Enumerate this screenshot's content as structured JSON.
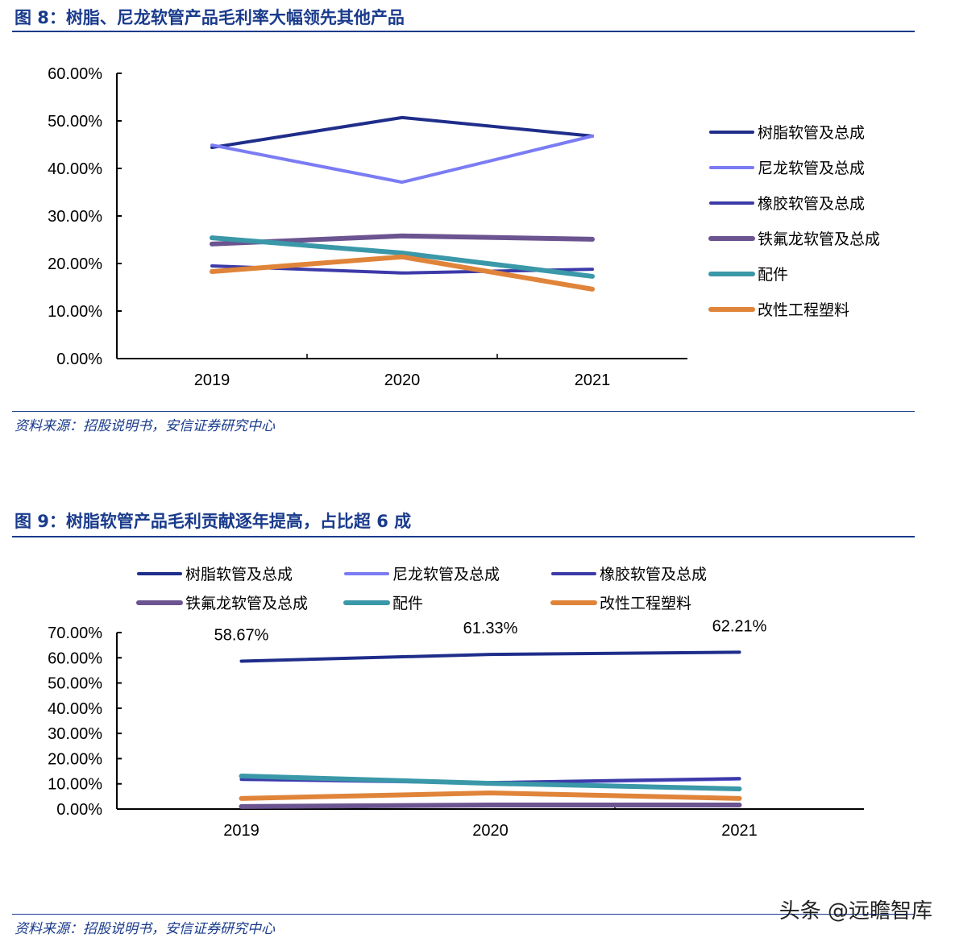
{
  "fig8": {
    "title": "图 8：树脂、尼龙软管产品毛利率大幅领先其他产品",
    "source": "资料来源：招股说明书，安信证券研究中心"
  },
  "fig9": {
    "title": "图 9：树脂软管产品毛利贡献逐年提高，占比超 6 成",
    "source": "资料来源：招股说明书，安信证券研究中心"
  },
  "watermark": "头条 @远瞻智库",
  "chart_data": [
    {
      "type": "line",
      "categories": [
        "2019",
        "2020",
        "2021"
      ],
      "ylim": [
        0,
        60
      ],
      "yticks": [
        "0.00%",
        "10.00%",
        "20.00%",
        "30.00%",
        "40.00%",
        "50.00%",
        "60.00%"
      ],
      "legend": "right",
      "grid": false,
      "series": [
        {
          "name": "树脂软管及总成",
          "color": "#1f2d8a",
          "width": 4,
          "values": [
            44.4,
            50.7,
            46.8
          ]
        },
        {
          "name": "尼龙软管及总成",
          "color": "#7b7cf4",
          "width": 4,
          "values": [
            44.9,
            37.1,
            46.8
          ]
        },
        {
          "name": "橡胶软管及总成",
          "color": "#3c3aa8",
          "width": 4,
          "values": [
            19.5,
            18.0,
            18.8
          ]
        },
        {
          "name": "铁氟龙软管及总成",
          "color": "#6b5490",
          "width": 6,
          "values": [
            24.1,
            25.8,
            25.1
          ]
        },
        {
          "name": "配件",
          "color": "#3a98a8",
          "width": 6,
          "values": [
            25.4,
            22.2,
            17.3
          ]
        },
        {
          "name": "改性工程塑料",
          "color": "#e0843a",
          "width": 6,
          "values": [
            18.3,
            21.4,
            14.6
          ]
        }
      ]
    },
    {
      "type": "line",
      "categories": [
        "2019",
        "2020",
        "2021"
      ],
      "ylim": [
        0,
        70
      ],
      "yticks": [
        "0.00%",
        "10.00%",
        "20.00%",
        "30.00%",
        "40.00%",
        "50.00%",
        "60.00%",
        "70.00%"
      ],
      "legend": "top",
      "grid": false,
      "data_labels": [
        "58.67%",
        "61.33%",
        "62.21%"
      ],
      "series": [
        {
          "name": "树脂软管及总成",
          "color": "#1f2d8a",
          "width": 4,
          "values": [
            58.67,
            61.33,
            62.21
          ]
        },
        {
          "name": "尼龙软管及总成",
          "color": "#7b7cf4",
          "width": 4,
          "values": [
            11.8,
            10.3,
            11.9
          ]
        },
        {
          "name": "橡胶软管及总成",
          "color": "#3c3aa8",
          "width": 4,
          "values": [
            11.8,
            10.5,
            12.1
          ]
        },
        {
          "name": "铁氟龙软管及总成",
          "color": "#6b5490",
          "width": 6,
          "values": [
            1.0,
            1.6,
            1.6
          ]
        },
        {
          "name": "配件",
          "color": "#3a98a8",
          "width": 6,
          "values": [
            13.1,
            10.2,
            8.0
          ]
        },
        {
          "name": "改性工程塑料",
          "color": "#e0843a",
          "width": 6,
          "values": [
            4.2,
            6.4,
            4.2
          ]
        }
      ]
    }
  ]
}
